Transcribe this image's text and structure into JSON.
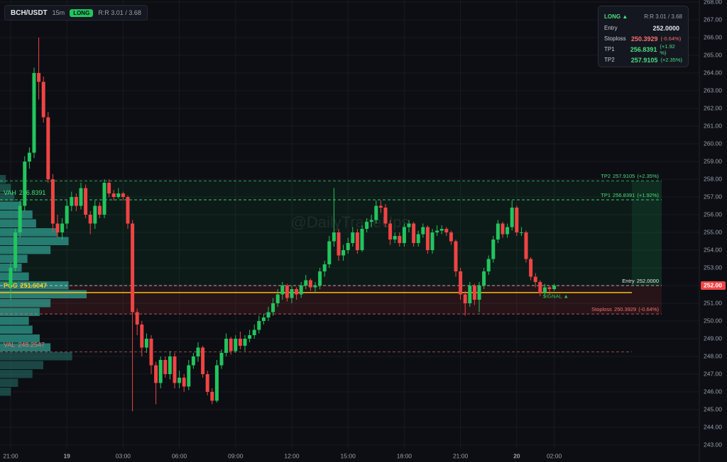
{
  "chart_data": {
    "type": "candlestick",
    "symbol": "BCH/USDT",
    "timeframe": "15m",
    "direction": "LONG",
    "panel_title": "LONG ▲",
    "risk_reward": "R:R 3.01 / 3.68",
    "watermark": "@DailyTradeUps",
    "signal_label": "SIGNAL ▲",
    "up_color": "#22c55e",
    "down_color": "#ef4444",
    "grid": true,
    "ylim": [
      243,
      268
    ],
    "yticks": [
      {
        "value": 243,
        "label": "243.00"
      },
      {
        "value": 244,
        "label": "244.00"
      },
      {
        "value": 245,
        "label": "245.00"
      },
      {
        "value": 246,
        "label": "246.00"
      },
      {
        "value": 247,
        "label": "247.00"
      },
      {
        "value": 248,
        "label": "248.00"
      },
      {
        "value": 249,
        "label": "249.00"
      },
      {
        "value": 250,
        "label": "250.00"
      },
      {
        "value": 251,
        "label": "251.00"
      },
      {
        "value": 252,
        "label": "252.00"
      },
      {
        "value": 253,
        "label": "253.00"
      },
      {
        "value": 254,
        "label": "254.00"
      },
      {
        "value": 255,
        "label": "255.00"
      },
      {
        "value": 256,
        "label": "256.00"
      },
      {
        "value": 257,
        "label": "257.00"
      },
      {
        "value": 258,
        "label": "258.00"
      },
      {
        "value": 259,
        "label": "259.00"
      },
      {
        "value": 260,
        "label": "260.00"
      },
      {
        "value": 261,
        "label": "261.00"
      },
      {
        "value": 262,
        "label": "262.00"
      },
      {
        "value": 263,
        "label": "263.00"
      },
      {
        "value": 264,
        "label": "264.00"
      },
      {
        "value": 265,
        "label": "265.00"
      },
      {
        "value": 266,
        "label": "266.00"
      },
      {
        "value": 267,
        "label": "267.00"
      },
      {
        "value": 268,
        "label": "268.00"
      }
    ],
    "price_tag": {
      "value": 252,
      "label": "252.00"
    },
    "categories": [
      "21:00",
      null,
      null,
      null,
      null,
      null,
      null,
      null,
      null,
      null,
      null,
      null,
      "19",
      null,
      null,
      null,
      null,
      null,
      null,
      null,
      null,
      null,
      null,
      null,
      "03:00",
      null,
      null,
      null,
      null,
      null,
      null,
      null,
      null,
      null,
      null,
      null,
      "06:00",
      null,
      null,
      null,
      null,
      null,
      null,
      null,
      null,
      null,
      null,
      null,
      "09:00",
      null,
      null,
      null,
      null,
      null,
      null,
      null,
      null,
      null,
      null,
      null,
      "12:00",
      null,
      null,
      null,
      null,
      null,
      null,
      null,
      null,
      null,
      null,
      null,
      "15:00",
      null,
      null,
      null,
      null,
      null,
      null,
      null,
      null,
      null,
      null,
      null,
      "18:00",
      null,
      null,
      null,
      null,
      null,
      null,
      null,
      null,
      null,
      null,
      null,
      "21:00",
      null,
      null,
      null,
      null,
      null,
      null,
      null,
      null,
      null,
      null,
      null,
      "20",
      null,
      null,
      null,
      null,
      null,
      null,
      null,
      "02:00"
    ],
    "ohlc": [
      [
        252.0,
        253.3,
        251.2,
        253.0
      ],
      [
        253.0,
        255.2,
        252.8,
        255.0
      ],
      [
        255.0,
        256.8,
        254.7,
        256.5
      ],
      [
        256.5,
        259.3,
        256.2,
        259.0
      ],
      [
        259.0,
        259.8,
        258.6,
        259.5
      ],
      [
        259.5,
        264.3,
        259.2,
        264.0
      ],
      [
        264.0,
        266.0,
        262.5,
        263.5
      ],
      [
        263.5,
        263.8,
        261.2,
        261.5
      ],
      [
        261.5,
        261.8,
        257.8,
        258.0
      ],
      [
        258.0,
        258.3,
        255.0,
        255.5
      ],
      [
        255.5,
        256.0,
        254.7,
        255.0
      ],
      [
        255.0,
        255.8,
        254.6,
        255.5
      ],
      [
        255.5,
        256.8,
        255.2,
        256.5
      ],
      [
        256.5,
        257.3,
        256.2,
        257.0
      ],
      [
        257.0,
        257.2,
        256.2,
        256.5
      ],
      [
        256.5,
        257.8,
        256.3,
        257.5
      ],
      [
        257.5,
        257.7,
        255.8,
        256.0
      ],
      [
        256.0,
        256.2,
        254.9,
        255.5
      ],
      [
        255.5,
        256.8,
        255.2,
        256.5
      ],
      [
        256.5,
        256.7,
        255.8,
        256.0
      ],
      [
        256.0,
        258.0,
        255.8,
        257.8
      ],
      [
        257.8,
        258.0,
        257.0,
        257.2
      ],
      [
        257.2,
        257.4,
        256.8,
        257.0
      ],
      [
        257.0,
        257.5,
        256.9,
        257.2
      ],
      [
        257.2,
        257.3,
        256.8,
        257.0
      ],
      [
        257.0,
        257.1,
        255.2,
        255.5
      ],
      [
        255.5,
        255.7,
        244.9,
        250.5
      ],
      [
        250.5,
        250.7,
        249.2,
        249.8
      ],
      [
        249.8,
        250.0,
        248.0,
        248.5
      ],
      [
        248.5,
        249.3,
        248.2,
        249.0
      ],
      [
        249.0,
        249.2,
        247.0,
        247.5
      ],
      [
        247.5,
        247.7,
        245.3,
        246.5
      ],
      [
        246.5,
        248.0,
        246.2,
        247.8
      ],
      [
        247.8,
        248.0,
        246.8,
        247.0
      ],
      [
        247.0,
        248.3,
        246.7,
        248.0
      ],
      [
        248.0,
        248.2,
        246.2,
        246.5
      ],
      [
        246.5,
        247.2,
        246.2,
        246.8
      ],
      [
        246.8,
        247.0,
        246.0,
        246.3
      ],
      [
        246.3,
        247.8,
        246.1,
        247.5
      ],
      [
        247.5,
        248.2,
        247.3,
        248.0
      ],
      [
        248.0,
        248.8,
        247.7,
        248.5
      ],
      [
        248.5,
        248.6,
        246.8,
        247.0
      ],
      [
        247.0,
        247.2,
        245.8,
        246.0
      ],
      [
        246.0,
        246.2,
        245.3,
        245.5
      ],
      [
        245.5,
        247.8,
        245.4,
        247.5
      ],
      [
        247.5,
        248.4,
        247.3,
        248.2
      ],
      [
        248.2,
        249.3,
        248.0,
        249.0
      ],
      [
        249.0,
        249.1,
        248.1,
        248.3
      ],
      [
        248.3,
        249.2,
        248.2,
        249.0
      ],
      [
        249.0,
        249.4,
        248.4,
        248.6
      ],
      [
        248.6,
        249.2,
        248.3,
        249.0
      ],
      [
        249.0,
        249.5,
        248.8,
        249.2
      ],
      [
        249.2,
        249.8,
        249.0,
        249.5
      ],
      [
        249.5,
        250.3,
        249.3,
        250.0
      ],
      [
        250.0,
        250.4,
        249.8,
        250.2
      ],
      [
        250.2,
        250.8,
        250.0,
        250.5
      ],
      [
        250.5,
        251.3,
        250.3,
        251.0
      ],
      [
        251.0,
        251.8,
        250.8,
        251.5
      ],
      [
        251.5,
        252.2,
        251.2,
        252.0
      ],
      [
        252.0,
        252.1,
        251.1,
        251.3
      ],
      [
        251.3,
        252.0,
        251.0,
        251.8
      ],
      [
        251.8,
        251.9,
        251.2,
        251.5
      ],
      [
        251.5,
        252.2,
        251.3,
        252.0
      ],
      [
        252.0,
        252.6,
        251.8,
        252.3
      ],
      [
        252.3,
        252.4,
        251.7,
        251.9
      ],
      [
        251.9,
        252.2,
        251.6,
        252.0
      ],
      [
        252.0,
        253.0,
        251.8,
        252.8
      ],
      [
        252.8,
        253.4,
        252.5,
        253.2
      ],
      [
        253.2,
        254.8,
        253.0,
        254.5
      ],
      [
        254.5,
        257.5,
        254.2,
        255.0
      ],
      [
        255.0,
        255.2,
        253.4,
        253.7
      ],
      [
        253.7,
        254.3,
        253.4,
        254.0
      ],
      [
        254.0,
        254.7,
        253.8,
        254.4
      ],
      [
        254.4,
        255.3,
        254.2,
        255.0
      ],
      [
        255.0,
        255.2,
        253.8,
        254.0
      ],
      [
        254.0,
        255.4,
        253.9,
        255.2
      ],
      [
        255.2,
        255.8,
        255.0,
        255.6
      ],
      [
        255.6,
        256.0,
        255.3,
        255.7
      ],
      [
        255.7,
        256.8,
        255.5,
        256.5
      ],
      [
        256.5,
        256.8,
        256.1,
        256.4
      ],
      [
        256.4,
        256.6,
        255.3,
        255.5
      ],
      [
        255.5,
        255.7,
        254.3,
        254.6
      ],
      [
        254.6,
        255.0,
        254.4,
        254.8
      ],
      [
        254.8,
        255.0,
        254.2,
        254.4
      ],
      [
        254.4,
        255.5,
        254.2,
        255.3
      ],
      [
        255.3,
        255.7,
        255.0,
        255.5
      ],
      [
        255.5,
        255.6,
        254.2,
        254.4
      ],
      [
        254.4,
        255.1,
        254.2,
        254.9
      ],
      [
        254.9,
        255.5,
        254.7,
        255.3
      ],
      [
        255.3,
        255.4,
        253.8,
        254.0
      ],
      [
        254.0,
        255.2,
        253.8,
        255.0
      ],
      [
        255.0,
        255.4,
        254.8,
        255.1
      ],
      [
        255.1,
        255.4,
        254.9,
        255.2
      ],
      [
        255.2,
        255.3,
        254.8,
        255.0
      ],
      [
        255.0,
        255.1,
        254.3,
        254.5
      ],
      [
        254.5,
        254.6,
        252.5,
        252.8
      ],
      [
        252.8,
        253.0,
        251.2,
        251.5
      ],
      [
        251.5,
        251.7,
        250.3,
        251.0
      ],
      [
        251.0,
        252.2,
        250.8,
        252.0
      ],
      [
        252.0,
        252.1,
        250.9,
        251.2
      ],
      [
        251.2,
        252.2,
        250.5,
        252.0
      ],
      [
        252.0,
        253.0,
        251.8,
        252.8
      ],
      [
        252.8,
        253.7,
        252.6,
        253.5
      ],
      [
        253.5,
        254.8,
        253.3,
        254.6
      ],
      [
        254.6,
        255.7,
        254.4,
        255.5
      ],
      [
        255.5,
        255.6,
        254.7,
        254.9
      ],
      [
        254.9,
        255.5,
        254.7,
        255.3
      ],
      [
        255.3,
        256.8,
        255.1,
        256.4
      ],
      [
        256.4,
        256.5,
        254.8,
        255.0
      ],
      [
        255.0,
        255.3,
        254.8,
        255.0
      ],
      [
        255.0,
        255.1,
        253.3,
        253.5
      ],
      [
        253.5,
        253.6,
        252.3,
        252.5
      ],
      [
        252.5,
        252.7,
        251.9,
        252.2
      ],
      [
        252.2,
        252.3,
        251.4,
        251.6
      ],
      [
        251.6,
        252.1,
        251.3,
        251.9
      ],
      [
        251.9,
        252.0,
        251.5,
        251.8
      ],
      [
        251.8,
        252.1,
        251.7,
        252.0
      ]
    ],
    "levels": [
      {
        "name": "Entry",
        "value": 252,
        "value_label": "252.0000",
        "color": "#e5e7eb"
      },
      {
        "name": "Stoploss",
        "value": 250.3929,
        "value_label": "250.3929",
        "change": "(-0.64%)",
        "panel_change": "(-0.64%)",
        "color": "#f87171"
      },
      {
        "name": "TP1",
        "value": 256.8391,
        "value_label": "256.8391",
        "change": "(+1.92%)",
        "panel_change": "(+1.92 %)",
        "color": "#4ade80"
      },
      {
        "name": "TP2",
        "value": 257.9105,
        "value_label": "257.9105",
        "change": "(+2.35%)",
        "panel_change": "(+2.35%)",
        "color": "#4ade80"
      }
    ],
    "value_area": [
      {
        "name": "VAH",
        "value": 256.8391,
        "color": "#4ade80"
      },
      {
        "name": "POC",
        "value": 251.6047,
        "color": "#facc15"
      },
      {
        "name": "VAL",
        "value": 248.2547,
        "color": "#f87171"
      }
    ],
    "volume_profile": {
      "color": "#2f9e8f",
      "prices": [
        246,
        246.5,
        247,
        247.5,
        248,
        248.5,
        249,
        249.5,
        250,
        250.5,
        251,
        251.5,
        252,
        252.5,
        253,
        253.5,
        254,
        254.5,
        255,
        255.5,
        256,
        256.5,
        257,
        257.5,
        258
      ],
      "values": [
        15,
        25,
        45,
        60,
        100,
        70,
        55,
        45,
        40,
        55,
        70,
        120,
        95,
        40,
        30,
        38,
        70,
        95,
        80,
        50,
        45,
        30,
        20,
        15,
        8
      ]
    }
  }
}
